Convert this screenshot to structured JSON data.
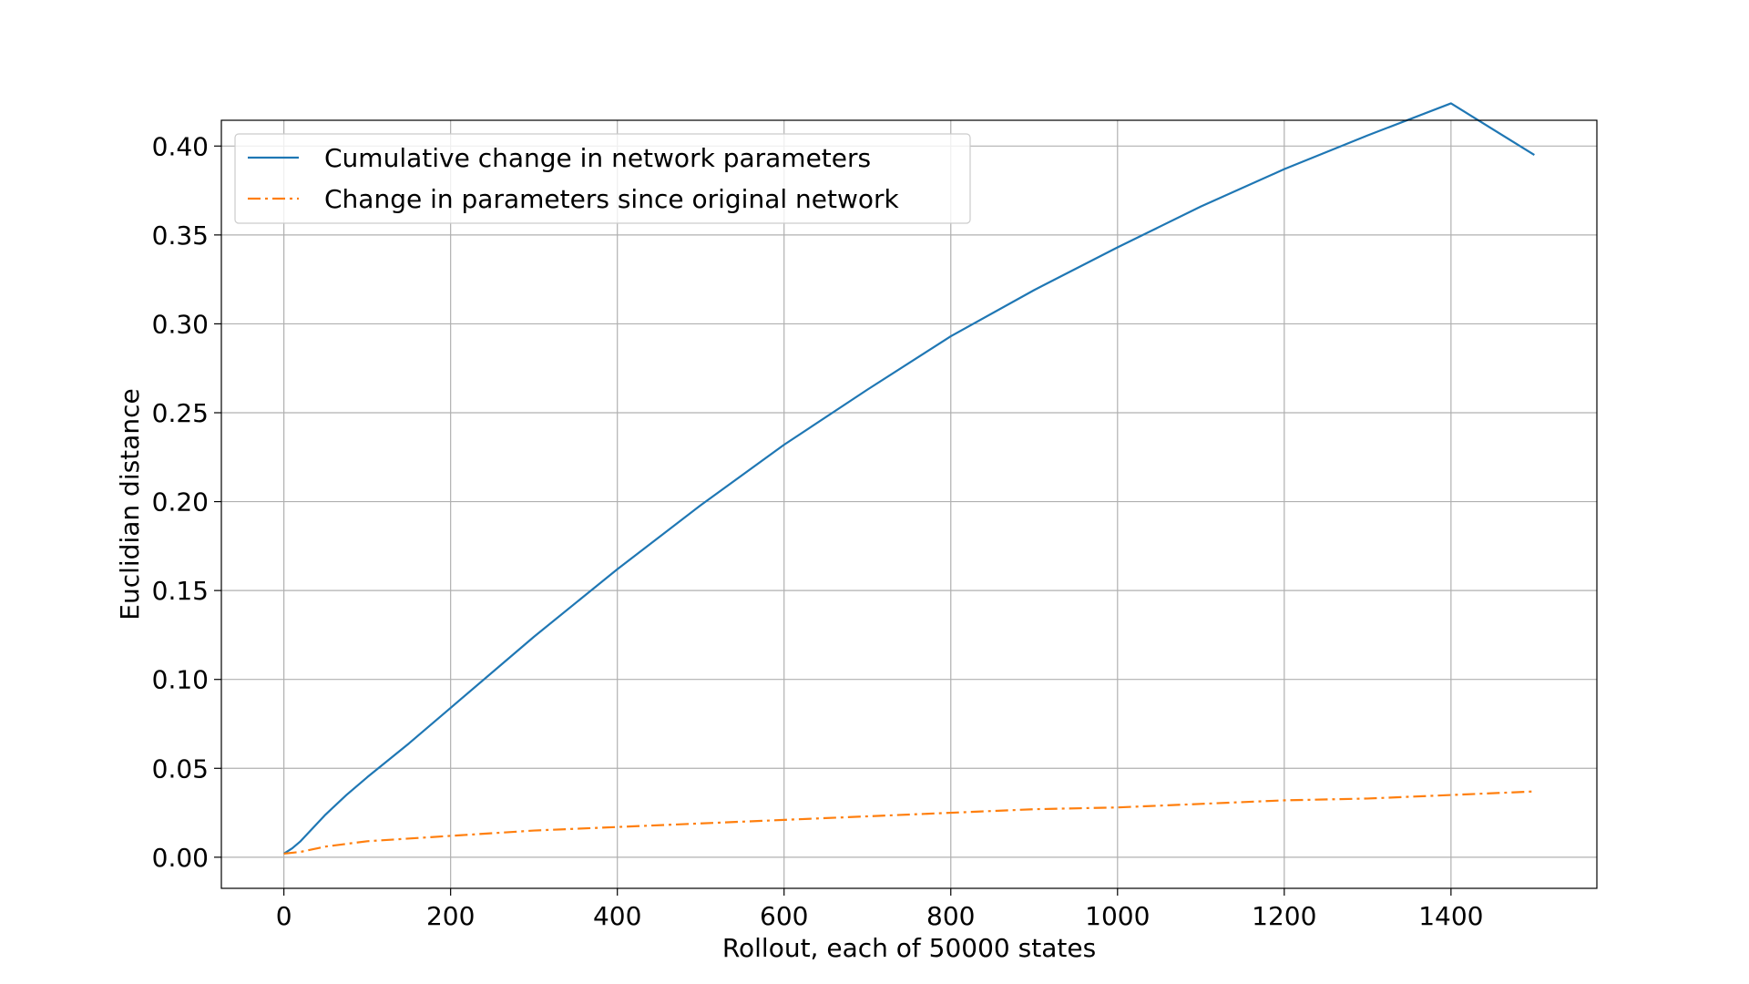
{
  "chart_data": {
    "type": "line",
    "title": "",
    "xlabel": "Rollout, each of 50000 states",
    "ylabel": "Euclidian distance",
    "xlim": [
      -75,
      1575
    ],
    "ylim": [
      -0.0175,
      0.4145
    ],
    "grid": true,
    "legend_position": "top-left",
    "xticks": [
      0,
      200,
      400,
      600,
      800,
      1000,
      1200,
      1400
    ],
    "xtick_labels": [
      "0",
      "200",
      "400",
      "600",
      "800",
      "1000",
      "1200",
      "1400"
    ],
    "yticks": [
      0.0,
      0.05,
      0.1,
      0.15,
      0.2,
      0.25,
      0.3,
      0.35,
      0.4
    ],
    "ytick_labels": [
      "0.00",
      "0.05",
      "0.10",
      "0.15",
      "0.20",
      "0.25",
      "0.30",
      "0.35",
      "0.40"
    ],
    "series": [
      {
        "name": "Cumulative change in network parameters",
        "color": "#1f77b4",
        "style": "solid",
        "x": [
          0,
          10,
          20,
          30,
          50,
          75,
          100,
          150,
          200,
          300,
          400,
          500,
          600,
          700,
          800,
          900,
          1000,
          1100,
          1200,
          1300,
          1400,
          1500
        ],
        "y": [
          0.002,
          0.005,
          0.009,
          0.014,
          0.024,
          0.035,
          0.045,
          0.064,
          0.084,
          0.124,
          0.162,
          0.198,
          0.232,
          0.263,
          0.293,
          0.319,
          0.343,
          0.366,
          0.387,
          0.406,
          0.424,
          0.395
        ]
      },
      {
        "name": "Change in parameters since original network",
        "color": "#ff7f0e",
        "style": "dashdot",
        "x": [
          0,
          20,
          50,
          100,
          200,
          300,
          400,
          500,
          600,
          700,
          800,
          900,
          1000,
          1100,
          1200,
          1300,
          1400,
          1500
        ],
        "y": [
          0.002,
          0.003,
          0.006,
          0.009,
          0.012,
          0.015,
          0.017,
          0.019,
          0.021,
          0.023,
          0.025,
          0.027,
          0.028,
          0.03,
          0.032,
          0.033,
          0.035,
          0.037
        ]
      }
    ]
  }
}
